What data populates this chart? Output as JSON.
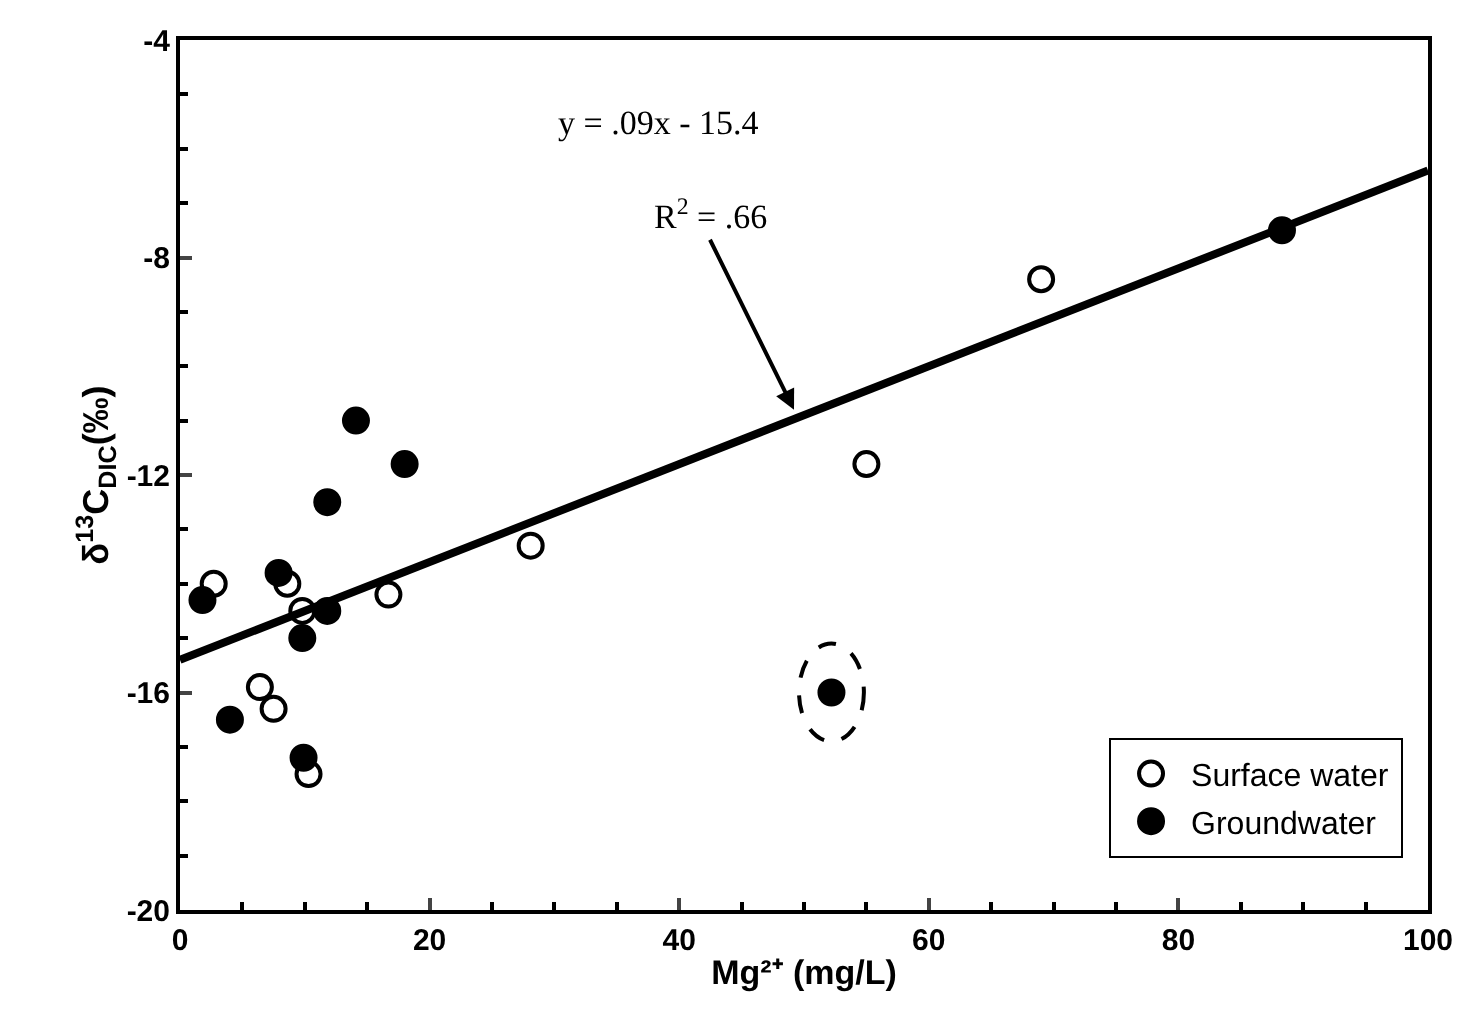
{
  "chart_data": {
    "type": "scatter",
    "xlabel": "Mg²⁺ (mg/L)",
    "ylabel": "δ$^{13}$C$_{DIC}$(‰)",
    "xlim": [
      0,
      100
    ],
    "xticks": [
      0,
      20,
      40,
      60,
      80,
      100
    ],
    "ylim": [
      -20,
      -4
    ],
    "yticks": [
      -20,
      -16,
      -12,
      -8,
      -4
    ],
    "legend": "bottom right",
    "marker": "circle",
    "series": [
      {
        "name": "Surface water",
        "color": "#000000",
        "x": [
          2.7,
          8.6,
          9.8,
          16.7,
          6.4,
          7.5,
          10.3,
          28.1,
          55.0,
          69.0
        ],
        "values": [
          -14.0,
          -14.0,
          -14.5,
          -14.2,
          -15.9,
          -16.3,
          -17.5,
          -13.3,
          -11.8,
          -8.4
        ]
      },
      {
        "name": "Groundwater",
        "color": "#000000",
        "x": [
          1.8,
          7.9,
          9.8,
          11.8,
          11.8,
          14.1,
          18.0,
          4.0,
          9.9,
          52.2,
          88.3
        ],
        "values": [
          -14.3,
          -13.8,
          -15.0,
          -14.5,
          -12.5,
          -11.0,
          -11.8,
          -16.5,
          -17.2,
          -16.0,
          -7.5
        ]
      },
      {
        "type": "line",
        "color": "#000000",
        "x": [
          0,
          100
        ],
        "values": [
          -15.4,
          -6.4
        ],
        "line_style": "solid",
        "marker": "none"
      }
    ],
    "annotations": [
      "y = .09x - 15.4",
      {
        "text": "R$^{2}$ = .66",
        "x": 49.2,
        "y": -10.8
      }
    ]
  }
}
